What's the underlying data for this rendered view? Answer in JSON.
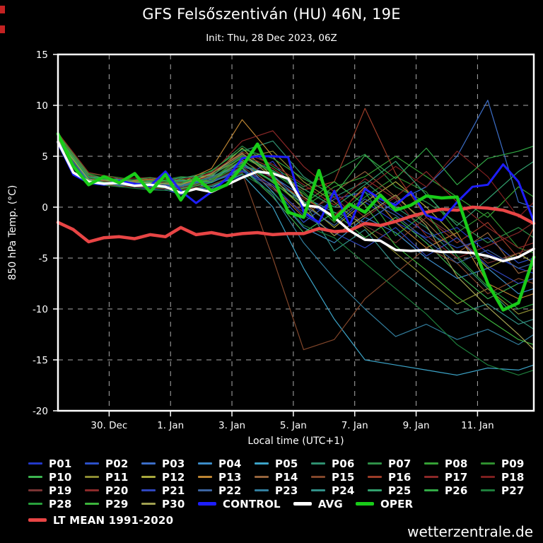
{
  "page": {
    "background": "#000000"
  },
  "header": {
    "title": "GFS Felsőszentiván (HU) 46N, 19E",
    "subtitle": "Init: Thu, 28 Dec 2023, 06Z"
  },
  "footer": {
    "site": "wetterzentrale.de"
  },
  "chart_data": {
    "type": "line",
    "title": "GFS Felsőszentiván (HU) 46N, 19E",
    "x_axis": {
      "label": "Local time (UTC+1)",
      "range": [
        0,
        372
      ],
      "ticks": [
        {
          "hour": 40,
          "label": "30. Dec"
        },
        {
          "hour": 88,
          "label": "1. Jan"
        },
        {
          "hour": 136,
          "label": "3. Jan"
        },
        {
          "hour": 184,
          "label": "5. Jan"
        },
        {
          "hour": 232,
          "label": "7. Jan"
        },
        {
          "hour": 280,
          "label": "9. Jan"
        },
        {
          "hour": 328,
          "label": "11. Jan"
        }
      ]
    },
    "y_axis": {
      "label": "850 hPa Temp. (°C)",
      "min": -20,
      "max": 15,
      "step": 5,
      "tick_labels": [
        "15",
        "10",
        "5",
        "0",
        "-5",
        "-10",
        "-15",
        "-20"
      ]
    },
    "grid": {
      "color": "#aaaaaa",
      "dash": "7 7"
    },
    "hours_main": [
      0,
      12,
      24,
      36,
      48,
      60,
      72,
      84,
      96,
      108,
      120,
      132,
      144,
      156,
      168,
      180,
      192,
      204,
      216,
      228,
      240,
      252,
      264,
      276,
      288,
      300,
      312,
      324,
      336,
      348,
      360,
      372
    ],
    "hours_members": [
      0,
      24,
      48,
      72,
      96,
      120,
      144,
      168,
      192,
      216,
      240,
      264,
      288,
      312,
      336,
      360,
      372
    ],
    "members": [
      {
        "name": "P01",
        "color": "#2338c8",
        "values": [
          6.5,
          2.5,
          2.2,
          1.8,
          1.5,
          2.2,
          3.0,
          4.5,
          0.5,
          -1.0,
          0.5,
          -1.5,
          -3.0,
          -2.0,
          -4.5,
          -6.0,
          -6.5
        ]
      },
      {
        "name": "P02",
        "color": "#2c50c8",
        "values": [
          6.3,
          2.8,
          2.0,
          2.3,
          1.2,
          2.5,
          3.5,
          2.0,
          -1.5,
          0.8,
          1.5,
          -0.5,
          -2.5,
          -4.0,
          -3.0,
          -5.5,
          -5.0
        ]
      },
      {
        "name": "P03",
        "color": "#3c6ec8",
        "values": [
          6.6,
          3.0,
          2.5,
          2.0,
          2.0,
          1.8,
          4.0,
          3.0,
          1.0,
          -0.5,
          -1.5,
          0.5,
          2.0,
          5.0,
          10.5,
          0.5,
          0.0
        ]
      },
      {
        "name": "P04",
        "color": "#3c8cc8",
        "values": [
          6.8,
          2.6,
          2.8,
          2.5,
          1.8,
          2.8,
          4.5,
          1.5,
          -2.0,
          -3.5,
          -1.0,
          -2.5,
          -5.0,
          -7.0,
          -6.0,
          -8.5,
          -8.0
        ]
      },
      {
        "name": "P05",
        "color": "#3ca4c8",
        "values": [
          6.4,
          2.4,
          2.1,
          2.2,
          2.5,
          2.0,
          3.2,
          0.0,
          -6.0,
          -11.0,
          -15.0,
          -15.5,
          -16.0,
          -16.5,
          -15.8,
          -16.0,
          -15.5
        ]
      },
      {
        "name": "P06",
        "color": "#2f9070",
        "values": [
          6.9,
          3.1,
          2.4,
          2.6,
          2.2,
          3.0,
          5.5,
          6.5,
          3.0,
          1.0,
          2.5,
          0.0,
          -2.0,
          -5.0,
          -8.0,
          -11.0,
          -12.0
        ]
      },
      {
        "name": "P07",
        "color": "#2f9048",
        "values": [
          7.0,
          2.9,
          2.6,
          2.1,
          2.8,
          3.5,
          6.0,
          4.0,
          2.0,
          3.5,
          5.2,
          2.0,
          0.5,
          -1.5,
          -3.5,
          -2.0,
          -3.0
        ]
      },
      {
        "name": "P08",
        "color": "#35a035",
        "values": [
          6.7,
          2.7,
          2.3,
          2.8,
          2.0,
          2.6,
          4.2,
          2.5,
          0.0,
          2.0,
          3.0,
          5.0,
          3.0,
          1.0,
          -1.0,
          2.0,
          1.0
        ]
      },
      {
        "name": "P09",
        "color": "#2f8f2f",
        "values": [
          7.2,
          3.3,
          2.9,
          2.4,
          3.0,
          2.8,
          5.0,
          3.5,
          1.5,
          -1.5,
          1.0,
          3.0,
          1.5,
          -2.5,
          -0.5,
          -4.0,
          -4.5
        ]
      },
      {
        "name": "P10",
        "color": "#3cb450",
        "values": [
          6.6,
          2.5,
          2.2,
          2.0,
          1.8,
          2.4,
          3.8,
          1.0,
          -2.5,
          -0.5,
          -3.0,
          -1.0,
          -3.5,
          -6.5,
          -9.0,
          -7.5,
          -7.0
        ]
      },
      {
        "name": "P11",
        "color": "#8c8c32",
        "values": [
          6.5,
          2.8,
          2.0,
          2.5,
          2.3,
          3.2,
          4.8,
          5.5,
          2.5,
          0.5,
          -2.0,
          -4.5,
          -7.0,
          -9.5,
          -8.0,
          -10.5,
          -10.0
        ]
      },
      {
        "name": "P12",
        "color": "#a8a83c",
        "values": [
          6.8,
          3.0,
          2.7,
          2.2,
          2.6,
          3.0,
          5.8,
          3.0,
          0.5,
          -2.0,
          0.5,
          2.5,
          0.0,
          -3.0,
          -6.0,
          -4.5,
          -5.5
        ]
      },
      {
        "name": "P13",
        "color": "#bc8432",
        "values": [
          7.1,
          3.2,
          2.5,
          2.7,
          2.4,
          3.8,
          8.6,
          5.0,
          1.0,
          -1.0,
          2.0,
          -1.5,
          -4.0,
          -2.5,
          -7.5,
          -9.0,
          -8.5
        ]
      },
      {
        "name": "P14",
        "color": "#96643c",
        "values": [
          6.9,
          2.6,
          2.4,
          2.3,
          2.1,
          2.7,
          4.4,
          2.0,
          -1.0,
          1.5,
          3.5,
          1.0,
          -1.5,
          -4.5,
          -2.5,
          -6.5,
          -6.0
        ]
      },
      {
        "name": "P15",
        "color": "#82462a",
        "values": [
          6.4,
          2.3,
          2.1,
          1.9,
          1.7,
          2.2,
          3.4,
          -5.0,
          -14.0,
          -13.0,
          -9.0,
          -6.5,
          -4.0,
          -5.5,
          -8.5,
          -7.0,
          -7.5
        ]
      },
      {
        "name": "P16",
        "color": "#9c3c28",
        "values": [
          6.6,
          2.7,
          2.3,
          2.6,
          2.2,
          3.1,
          5.2,
          3.8,
          1.7,
          2.5,
          9.7,
          3.3,
          -1.0,
          -3.5,
          -1.5,
          -5.0,
          -2.0
        ]
      },
      {
        "name": "P17",
        "color": "#8c2828",
        "values": [
          7.3,
          3.4,
          2.8,
          2.9,
          2.7,
          3.3,
          6.5,
          7.5,
          4.0,
          1.5,
          -1.0,
          1.0,
          3.5,
          0.5,
          -2.0,
          -4.0,
          -3.5
        ]
      },
      {
        "name": "P18",
        "color": "#7d1f1f",
        "values": [
          6.7,
          2.9,
          2.2,
          2.4,
          2.5,
          2.9,
          4.6,
          2.8,
          0.8,
          -0.8,
          1.8,
          4.0,
          2.0,
          5.5,
          3.0,
          -1.0,
          0.5
        ]
      },
      {
        "name": "P19",
        "color": "#7a3434",
        "values": [
          6.5,
          2.6,
          2.5,
          2.1,
          1.9,
          2.5,
          4.0,
          1.8,
          -0.5,
          1.0,
          -1.8,
          -3.5,
          -1.0,
          -3.0,
          -5.5,
          -4.5,
          -4.0
        ]
      },
      {
        "name": "P20",
        "color": "#8c2a2a",
        "values": [
          7.0,
          3.1,
          2.6,
          2.8,
          2.4,
          3.4,
          5.4,
          4.2,
          2.2,
          0.2,
          2.8,
          0.8,
          -2.8,
          -5.0,
          -3.8,
          -2.5,
          -1.5
        ]
      },
      {
        "name": "P21",
        "color": "#2f46be",
        "values": [
          6.4,
          2.4,
          2.3,
          2.0,
          2.2,
          2.6,
          3.6,
          2.2,
          -0.8,
          -2.5,
          -4.0,
          -2.0,
          -4.8,
          -3.0,
          -5.8,
          -7.5,
          -7.0
        ]
      },
      {
        "name": "P22",
        "color": "#3c64a0",
        "values": [
          6.6,
          2.8,
          2.1,
          2.4,
          2.0,
          2.9,
          4.1,
          3.2,
          0.2,
          -1.8,
          0.8,
          -0.8,
          -3.2,
          -5.5,
          -4.2,
          -6.0,
          -5.5
        ]
      },
      {
        "name": "P23",
        "color": "#327e9e",
        "values": [
          6.8,
          2.5,
          2.4,
          2.2,
          2.6,
          2.4,
          3.9,
          1.2,
          -3.5,
          -7.0,
          -10.0,
          -12.7,
          -11.5,
          -13.0,
          -12.0,
          -13.5,
          -12.5
        ]
      },
      {
        "name": "P24",
        "color": "#329088",
        "values": [
          6.5,
          2.7,
          2.2,
          2.5,
          2.1,
          3.0,
          4.3,
          2.6,
          0.6,
          -4.3,
          -2.2,
          -5.8,
          -8.2,
          -10.5,
          -9.5,
          -11.5,
          -11.0
        ]
      },
      {
        "name": "P25",
        "color": "#32a06e",
        "values": [
          6.9,
          3.0,
          2.7,
          2.3,
          2.9,
          3.1,
          5.1,
          3.6,
          1.8,
          0.0,
          2.2,
          4.5,
          1.2,
          -1.8,
          0.8,
          3.5,
          4.5
        ]
      },
      {
        "name": "P26",
        "color": "#32aa46",
        "values": [
          7.1,
          3.2,
          2.5,
          2.9,
          2.3,
          3.6,
          5.7,
          4.8,
          2.8,
          1.2,
          5.1,
          2.8,
          5.8,
          2.2,
          4.8,
          5.5,
          6.0
        ]
      },
      {
        "name": "P27",
        "color": "#1e7e3c",
        "values": [
          6.3,
          2.3,
          2.0,
          1.7,
          1.6,
          2.1,
          3.3,
          1.4,
          -1.8,
          -3.0,
          -5.5,
          -8.0,
          -10.5,
          -13.5,
          -15.5,
          -16.5,
          -16.0
        ]
      },
      {
        "name": "P28",
        "color": "#28a03c",
        "values": [
          6.7,
          2.9,
          2.4,
          2.6,
          2.5,
          2.7,
          4.9,
          3.4,
          1.3,
          -1.2,
          1.5,
          -2.8,
          -0.5,
          -4.8,
          -7.8,
          -10.0,
          -9.5
        ]
      },
      {
        "name": "P29",
        "color": "#3cb43c",
        "values": [
          7.0,
          2.6,
          2.3,
          2.1,
          2.7,
          2.5,
          4.7,
          2.4,
          0.3,
          2.5,
          0.2,
          -3.8,
          -6.2,
          -8.8,
          -11.0,
          -13.0,
          -13.5
        ]
      },
      {
        "name": "P30",
        "color": "#a0a050",
        "values": [
          6.6,
          2.7,
          2.6,
          2.4,
          2.2,
          3.3,
          5.3,
          2.9,
          -0.2,
          -2.8,
          -0.8,
          1.2,
          -1.8,
          -6.8,
          -9.8,
          -12.5,
          -14.0
        ]
      }
    ],
    "main_series": [
      {
        "name": "LT MEAN 1991-2020",
        "color": "#e84545",
        "width": 4.5,
        "values": [
          -1.5,
          -2.2,
          -3.4,
          -3.0,
          -2.9,
          -3.1,
          -2.7,
          -2.9,
          -2.0,
          -2.7,
          -2.5,
          -2.8,
          -2.6,
          -2.5,
          -2.7,
          -2.6,
          -2.6,
          -2.1,
          -2.4,
          -2.3,
          -1.6,
          -1.8,
          -1.4,
          -0.9,
          -0.5,
          -0.2,
          -0.3,
          0.0,
          -0.1,
          -0.3,
          -0.8,
          -1.6
        ]
      },
      {
        "name": "CONTROL",
        "color": "#1e1eff",
        "width": 3,
        "values": [
          6.3,
          3.2,
          2.4,
          2.2,
          2.6,
          2.3,
          2.1,
          3.5,
          1.6,
          0.4,
          1.5,
          2.8,
          4.8,
          5.0,
          5.0,
          4.9,
          -0.5,
          -1.5,
          1.6,
          -1.8,
          1.8,
          0.8,
          0.2,
          1.5,
          -0.8,
          -1.3,
          0.5,
          2.0,
          2.2,
          4.2,
          2.5,
          -1.4
        ]
      },
      {
        "name": "AVG",
        "color": "#ffffff",
        "width": 3.5,
        "values": [
          6.4,
          3.4,
          2.5,
          2.3,
          2.4,
          2.1,
          2.2,
          2.0,
          1.4,
          1.8,
          1.5,
          2.2,
          2.9,
          3.5,
          3.3,
          2.8,
          0.2,
          0.0,
          -1.0,
          -2.3,
          -3.2,
          -3.3,
          -4.2,
          -4.3,
          -4.2,
          -4.4,
          -4.4,
          -4.5,
          -4.8,
          -5.3,
          -4.9,
          -4.1
        ]
      },
      {
        "name": "OPER",
        "color": "#19cc19",
        "width": 4.5,
        "values": [
          7.2,
          4.0,
          2.2,
          3.0,
          2.4,
          3.3,
          1.5,
          3.2,
          0.7,
          2.9,
          1.6,
          2.2,
          4.0,
          6.2,
          3.0,
          -0.5,
          -1.0,
          3.6,
          -1.2,
          0.3,
          -0.5,
          1.2,
          -0.3,
          0.2,
          1.1,
          0.9,
          1.0,
          -3.5,
          -7.5,
          -10.1,
          -9.4,
          -4.9
        ]
      }
    ]
  },
  "legend": {
    "rows": [
      [
        "P01",
        "P02",
        "P03",
        "P04",
        "P05",
        "P06",
        "P07",
        "P08",
        "P09"
      ],
      [
        "P10",
        "P11",
        "P12",
        "P13",
        "P14",
        "P15",
        "P16",
        "P17",
        "P18"
      ],
      [
        "P19",
        "P20",
        "P21",
        "P22",
        "P23",
        "P24",
        "P25",
        "P26",
        "P27"
      ],
      [
        "P28",
        "P29",
        "P30",
        "CONTROL",
        "AVG",
        "OPER"
      ],
      [
        "LT MEAN 1991-2020"
      ]
    ],
    "thick_items": [
      "CONTROL",
      "AVG",
      "OPER",
      "LT MEAN 1991-2020"
    ]
  }
}
